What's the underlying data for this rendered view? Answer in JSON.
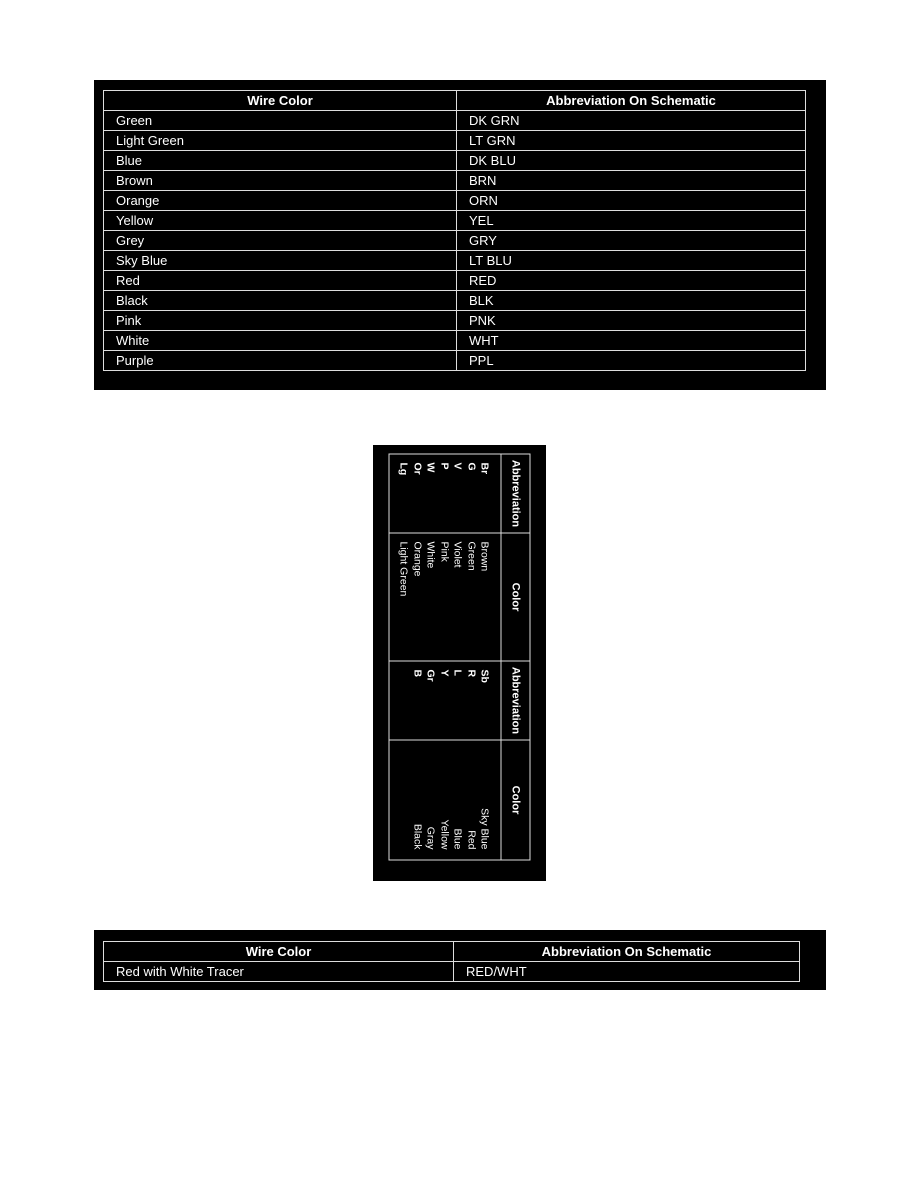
{
  "table1": {
    "headers": [
      "Wire Color",
      "Abbreviation On Schematic"
    ],
    "rows": [
      [
        "Green",
        "DK GRN"
      ],
      [
        "Light Green",
        "LT GRN"
      ],
      [
        "Blue",
        "DK BLU"
      ],
      [
        "Brown",
        "BRN"
      ],
      [
        "Orange",
        "ORN"
      ],
      [
        "Yellow",
        "YEL"
      ],
      [
        "Grey",
        "GRY"
      ],
      [
        "Sky Blue",
        "LT BLU"
      ],
      [
        "Red",
        "RED"
      ],
      [
        "Black",
        "BLK"
      ],
      [
        "Pink",
        "PNK"
      ],
      [
        "White",
        "WHT"
      ],
      [
        "Purple",
        "PPL"
      ]
    ]
  },
  "table2": {
    "headers": [
      "Abbreviation",
      "Color",
      "Abbreviation",
      "Color"
    ],
    "col1": [
      "Br",
      "G",
      "V",
      "P",
      "W",
      "Or",
      "Lg"
    ],
    "col2": [
      "Brown",
      "Green",
      "Violet",
      "Pink",
      "White",
      "Orange",
      "Light Green"
    ],
    "col3": [
      "Sb",
      "R",
      "L",
      "Y",
      "Gr",
      "B"
    ],
    "col4": [
      "Sky Blue",
      "Red",
      "Blue",
      "Yellow",
      "Gray",
      "Black"
    ]
  },
  "table3": {
    "headers": [
      "Wire Color",
      "Abbreviation On Schematic"
    ],
    "rows": [
      [
        "Red with White Tracer",
        "RED/WHT"
      ]
    ]
  }
}
